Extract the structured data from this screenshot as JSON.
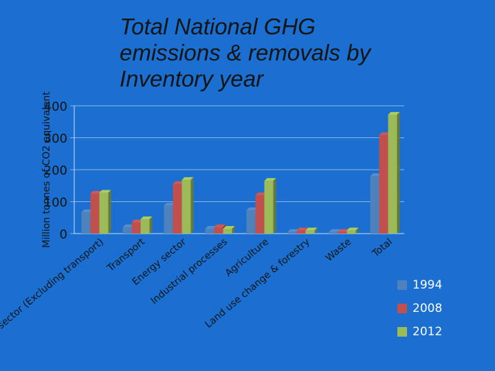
{
  "slide": {
    "title_lines": [
      "Total National GHG",
      "emissions & removals by",
      "Inventory year"
    ]
  },
  "chart_data": {
    "type": "bar",
    "title": "Total National GHG emissions & removals by Inventory year",
    "ylabel": "Million tonnes of CO2 equivalent",
    "xlabel": "",
    "ylim": [
      0,
      400
    ],
    "yticks": [
      0,
      100,
      200,
      300,
      400
    ],
    "grid": true,
    "legend_position": "bottom-right",
    "categories": [
      "Energy sector (Excluding transport)",
      "Transport",
      "Energy sector",
      "Industrial processes",
      "Agriculture",
      "Land use change & forestry",
      "Waste",
      "Total"
    ],
    "series": [
      {
        "name": "1994",
        "color": "#4f81bd",
        "values": [
          67,
          20,
          88,
          15,
          73,
          5,
          5,
          180
        ]
      },
      {
        "name": "2008",
        "color": "#c0504d",
        "values": [
          125,
          35,
          155,
          20,
          120,
          10,
          5,
          308
        ]
      },
      {
        "name": "2012",
        "color": "#9bbb59",
        "values": [
          128,
          45,
          168,
          15,
          165,
          10,
          10,
          372
        ]
      }
    ]
  }
}
